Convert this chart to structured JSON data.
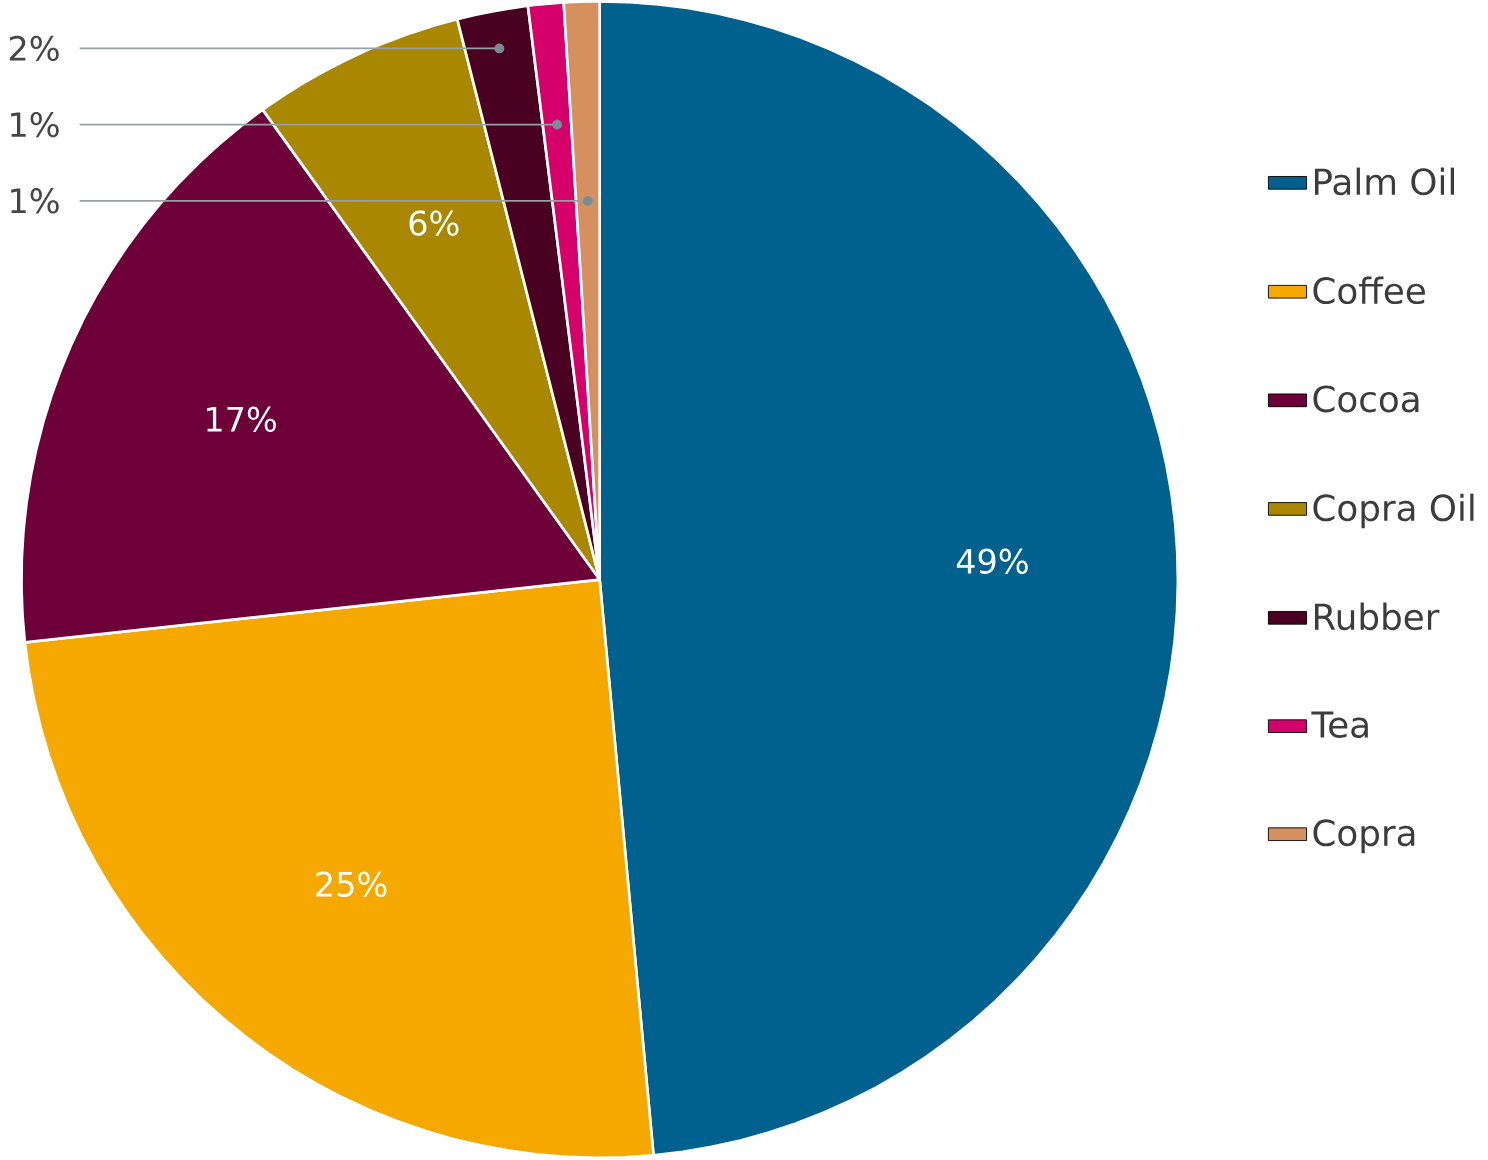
{
  "chart_data": {
    "type": "pie",
    "categories": [
      "Palm Oil",
      "Coffee",
      "Cocoa",
      "Copra Oil",
      "Rubber",
      "Tea",
      "Copra"
    ],
    "values": [
      49,
      25,
      17,
      6,
      2,
      1,
      1
    ],
    "value_labels": [
      "49%",
      "25%",
      "17%",
      "6%",
      "2%",
      "1%",
      "1%"
    ],
    "colors": [
      "#00618f",
      "#f5a800",
      "#6d0039",
      "#a98700",
      "#4a0020",
      "#d6006b",
      "#d4915f"
    ],
    "legend": "right"
  }
}
